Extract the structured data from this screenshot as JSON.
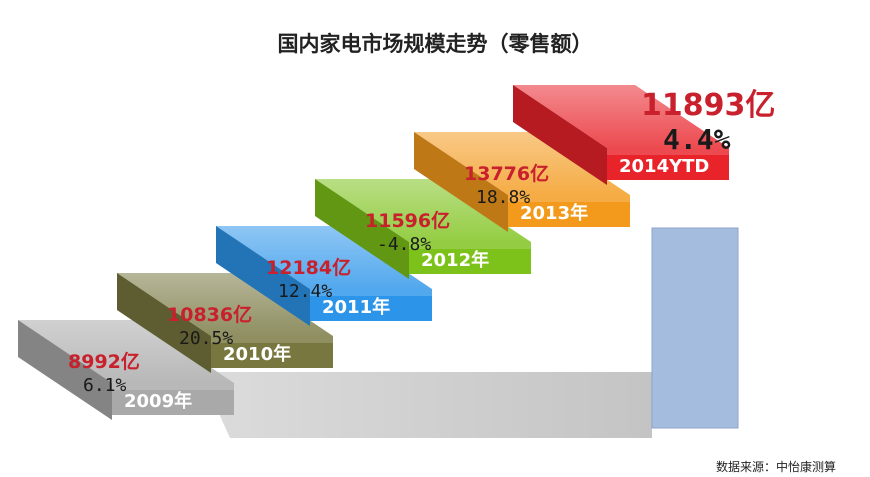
{
  "chart_data": {
    "type": "bar",
    "title": "国内家电市场规模走势（零售额）",
    "categories": [
      "2009年",
      "2010年",
      "2011年",
      "2012年",
      "2013年",
      "2014YTD"
    ],
    "series": [
      {
        "values": [
          8992,
          10836,
          12184,
          11596,
          13776,
          11893
        ]
      }
    ],
    "value_labels": [
      "8992亿",
      "10836亿",
      "12184亿",
      "11596亿",
      "13776亿",
      "11893亿"
    ],
    "growth_labels": [
      "6.1%",
      "20.5%",
      "12.4%",
      "-4.8%",
      "18.8%",
      "4.4%"
    ],
    "growth": [
      6.1,
      20.5,
      12.4,
      -4.8,
      18.8,
      4.4
    ],
    "unit": "亿",
    "colors": [
      "#a9a9a9",
      "#77773f",
      "#2c95ea",
      "#7dc21a",
      "#f39a1c",
      "#e8232a"
    ],
    "label_colors": {
      "value": "#c8202c",
      "growth": "#1a1a1a"
    }
  },
  "source": "数据来源：中怡康测算"
}
